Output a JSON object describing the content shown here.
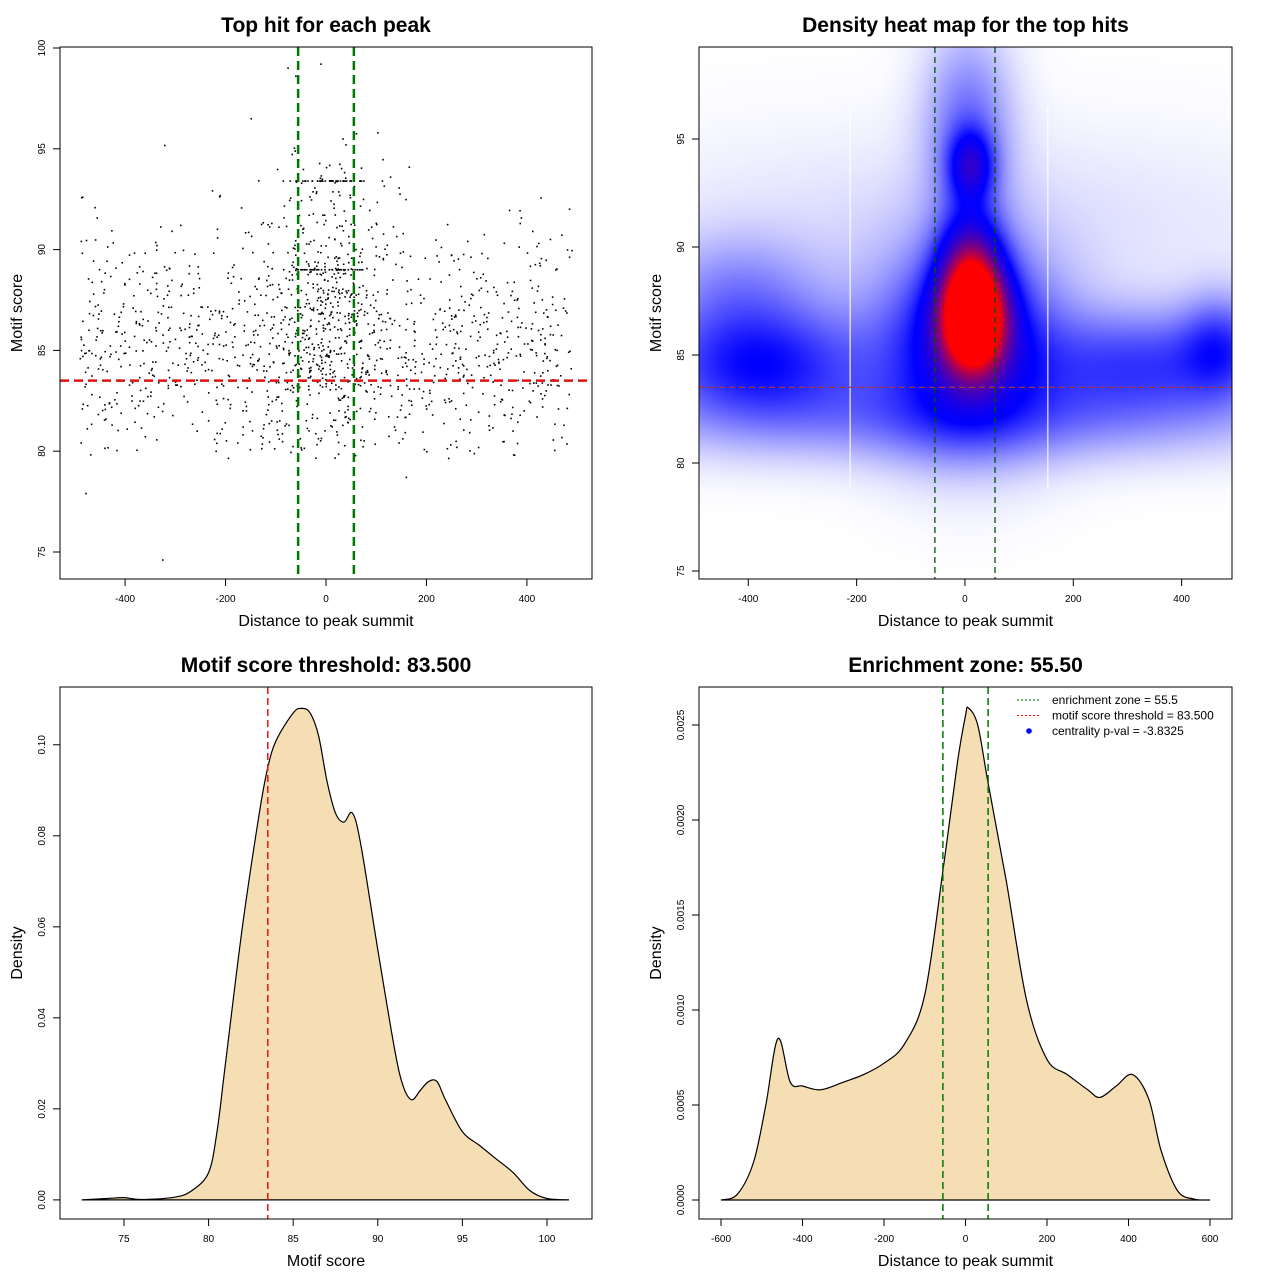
{
  "chart_data": [
    {
      "type": "scatter",
      "title": "Top hit for each peak",
      "xlabel": "Distance to peak summit",
      "ylabel": "Motif score",
      "xlim": [
        -529.6,
        529.6
      ],
      "ylim": [
        73.66,
        100.05
      ],
      "xticks": [
        -400,
        -200,
        0,
        200,
        400
      ],
      "yticks": [
        75,
        80,
        85,
        90,
        95,
        100
      ],
      "hlines": [
        {
          "value": 83.5,
          "color": "#dd1111",
          "style": "dashed"
        }
      ],
      "vlines": [
        {
          "value": -55.5,
          "color": "#007700",
          "style": "dashed"
        },
        {
          "value": 55.5,
          "color": "#007700",
          "style": "dashed"
        }
      ],
      "points_generator": {
        "n_background": 1100,
        "n_central": 450,
        "x_range": [
          -490,
          490
        ],
        "central_sd": 70,
        "score_mean": 86,
        "score_sd": 3.2,
        "tie_scores": [
          89.0,
          93.4
        ],
        "seed": 7
      },
      "outlier_points": [
        [
          -478,
          77.9
        ],
        [
          -325,
          74.6
        ],
        [
          160,
          78.7
        ],
        [
          -10,
          99.2
        ],
        [
          -60,
          98.6
        ]
      ]
    },
    {
      "type": "heatmap",
      "title": "Density heat map for the top hits",
      "xlabel": "Distance to peak summit",
      "ylabel": "Motif score",
      "xlim": [
        -491,
        493
      ],
      "ylim": [
        74.63,
        99.26
      ],
      "xticks": [
        -400,
        -200,
        0,
        200,
        400
      ],
      "yticks": [
        75,
        80,
        85,
        90,
        95
      ],
      "colors": [
        "#ffffff",
        "#0000ff",
        "#ff0000"
      ],
      "density_blobs": [
        {
          "x": 15,
          "y": 86.6,
          "sx": 42,
          "sy": 1.7,
          "w": 1.0
        },
        {
          "x": 10,
          "y": 88.6,
          "sx": 38,
          "sy": 2.0,
          "w": 0.55
        },
        {
          "x": 5,
          "y": 85.5,
          "sx": 110,
          "sy": 3.0,
          "w": 0.45
        },
        {
          "x": 10,
          "y": 93.8,
          "sx": 28,
          "sy": 1.1,
          "w": 0.35
        },
        {
          "x": 5,
          "y": 95.5,
          "sx": 55,
          "sy": 3.0,
          "w": 0.2
        },
        {
          "x": -380,
          "y": 84.6,
          "sx": 140,
          "sy": 1.8,
          "w": 0.34
        },
        {
          "x": -420,
          "y": 88.0,
          "sx": 110,
          "sy": 1.8,
          "w": 0.14
        },
        {
          "x": 330,
          "y": 84.6,
          "sx": 150,
          "sy": 1.7,
          "w": 0.27
        },
        {
          "x": 470,
          "y": 85.5,
          "sx": 50,
          "sy": 1.6,
          "w": 0.2
        },
        {
          "x": 0,
          "y": 82.0,
          "sx": 420,
          "sy": 1.4,
          "w": 0.14
        },
        {
          "x": 0,
          "y": 91.0,
          "sx": 450,
          "sy": 3.0,
          "w": 0.04
        }
      ],
      "hlines": [
        {
          "value": 83.5,
          "color": "#aa3333",
          "style": "dashed"
        }
      ],
      "vlines": [
        {
          "value": -55.5,
          "color": "#005500",
          "style": "dashed"
        },
        {
          "value": 55.5,
          "color": "#005500",
          "style": "dashed"
        }
      ]
    },
    {
      "type": "area",
      "title": "Motif score threshold: 83.500",
      "xlabel": "Motif score",
      "ylabel": "Density",
      "xlim": [
        71.22,
        102.66
      ],
      "ylim": [
        -0.0042,
        0.1127
      ],
      "xticks": [
        75,
        80,
        85,
        90,
        95,
        100
      ],
      "yticks": [
        0.0,
        0.02,
        0.04,
        0.06,
        0.08,
        0.1
      ],
      "ytick_labels": [
        "0.00",
        "0.02",
        "0.04",
        "0.06",
        "0.08",
        "0.10"
      ],
      "fill": "#f5deb3",
      "vlines": [
        {
          "value": 83.5,
          "color": "#ee1111",
          "style": "dashed"
        }
      ],
      "x": [
        72.5,
        74,
        75,
        76,
        78,
        79,
        80,
        80.5,
        81,
        82,
        83,
        83.5,
        84,
        85,
        85.5,
        86,
        86.5,
        87,
        87.5,
        88,
        88.5,
        89,
        90,
        91,
        91.5,
        92,
        92.5,
        93,
        93.5,
        94,
        95,
        96,
        97,
        98,
        99,
        100,
        101.3
      ],
      "y": [
        0,
        0.0003,
        0.0005,
        0.0001,
        0.0006,
        0.002,
        0.006,
        0.015,
        0.03,
        0.06,
        0.085,
        0.095,
        0.101,
        0.107,
        0.108,
        0.107,
        0.102,
        0.092,
        0.085,
        0.083,
        0.085,
        0.078,
        0.055,
        0.033,
        0.025,
        0.022,
        0.024,
        0.026,
        0.026,
        0.022,
        0.015,
        0.012,
        0.009,
        0.006,
        0.002,
        0.0003,
        0
      ]
    },
    {
      "type": "area",
      "title": "Enrichment zone: 55.50",
      "xlabel": "Distance to peak summit",
      "ylabel": "Density",
      "xlim": [
        -654,
        654
      ],
      "ylim": [
        -0.0001,
        0.0027
      ],
      "xticks": [
        -600,
        -400,
        -200,
        0,
        200,
        400,
        600
      ],
      "yticks": [
        0,
        0.0005,
        0.001,
        0.0015,
        0.002,
        0.0025
      ],
      "ytick_labels": [
        "0.0000",
        "0.0005",
        "0.0010",
        "0.0015",
        "0.0020",
        "0.0025"
      ],
      "fill": "#f5deb3",
      "vlines": [
        {
          "value": -55.5,
          "color": "#007700",
          "style": "dashed"
        },
        {
          "value": 55.5,
          "color": "#007700",
          "style": "dashed"
        }
      ],
      "x": [
        -600,
        -560,
        -520,
        -490,
        -460,
        -430,
        -400,
        -356,
        -300,
        -250,
        -200,
        -150,
        -100,
        -55,
        -20,
        0,
        7,
        30,
        55,
        100,
        150,
        200,
        250,
        300,
        330,
        370,
        410,
        450,
        480,
        520,
        560,
        600
      ],
      "y": [
        0,
        3e-05,
        0.0002,
        0.0005,
        0.00085,
        0.00062,
        0.0006,
        0.00058,
        0.00062,
        0.00066,
        0.00072,
        0.00082,
        0.00108,
        0.00174,
        0.0023,
        0.00255,
        0.00259,
        0.0025,
        0.0022,
        0.00168,
        0.00105,
        0.00074,
        0.00066,
        0.00058,
        0.00054,
        0.0006,
        0.00066,
        0.00053,
        0.00026,
        5e-05,
        5e-06,
        0
      ],
      "legend": {
        "position": "top-right",
        "entries": [
          {
            "label": "enrichment zone = 55.5",
            "color": "#007700",
            "symbol": "dotted-line"
          },
          {
            "label": "motif score threshold = 83.500",
            "color": "#ff0000",
            "symbol": "dotted-line"
          },
          {
            "label": "centrality p-val = -3.8325",
            "color": "#0000ff",
            "symbol": "dot"
          }
        ]
      }
    }
  ]
}
